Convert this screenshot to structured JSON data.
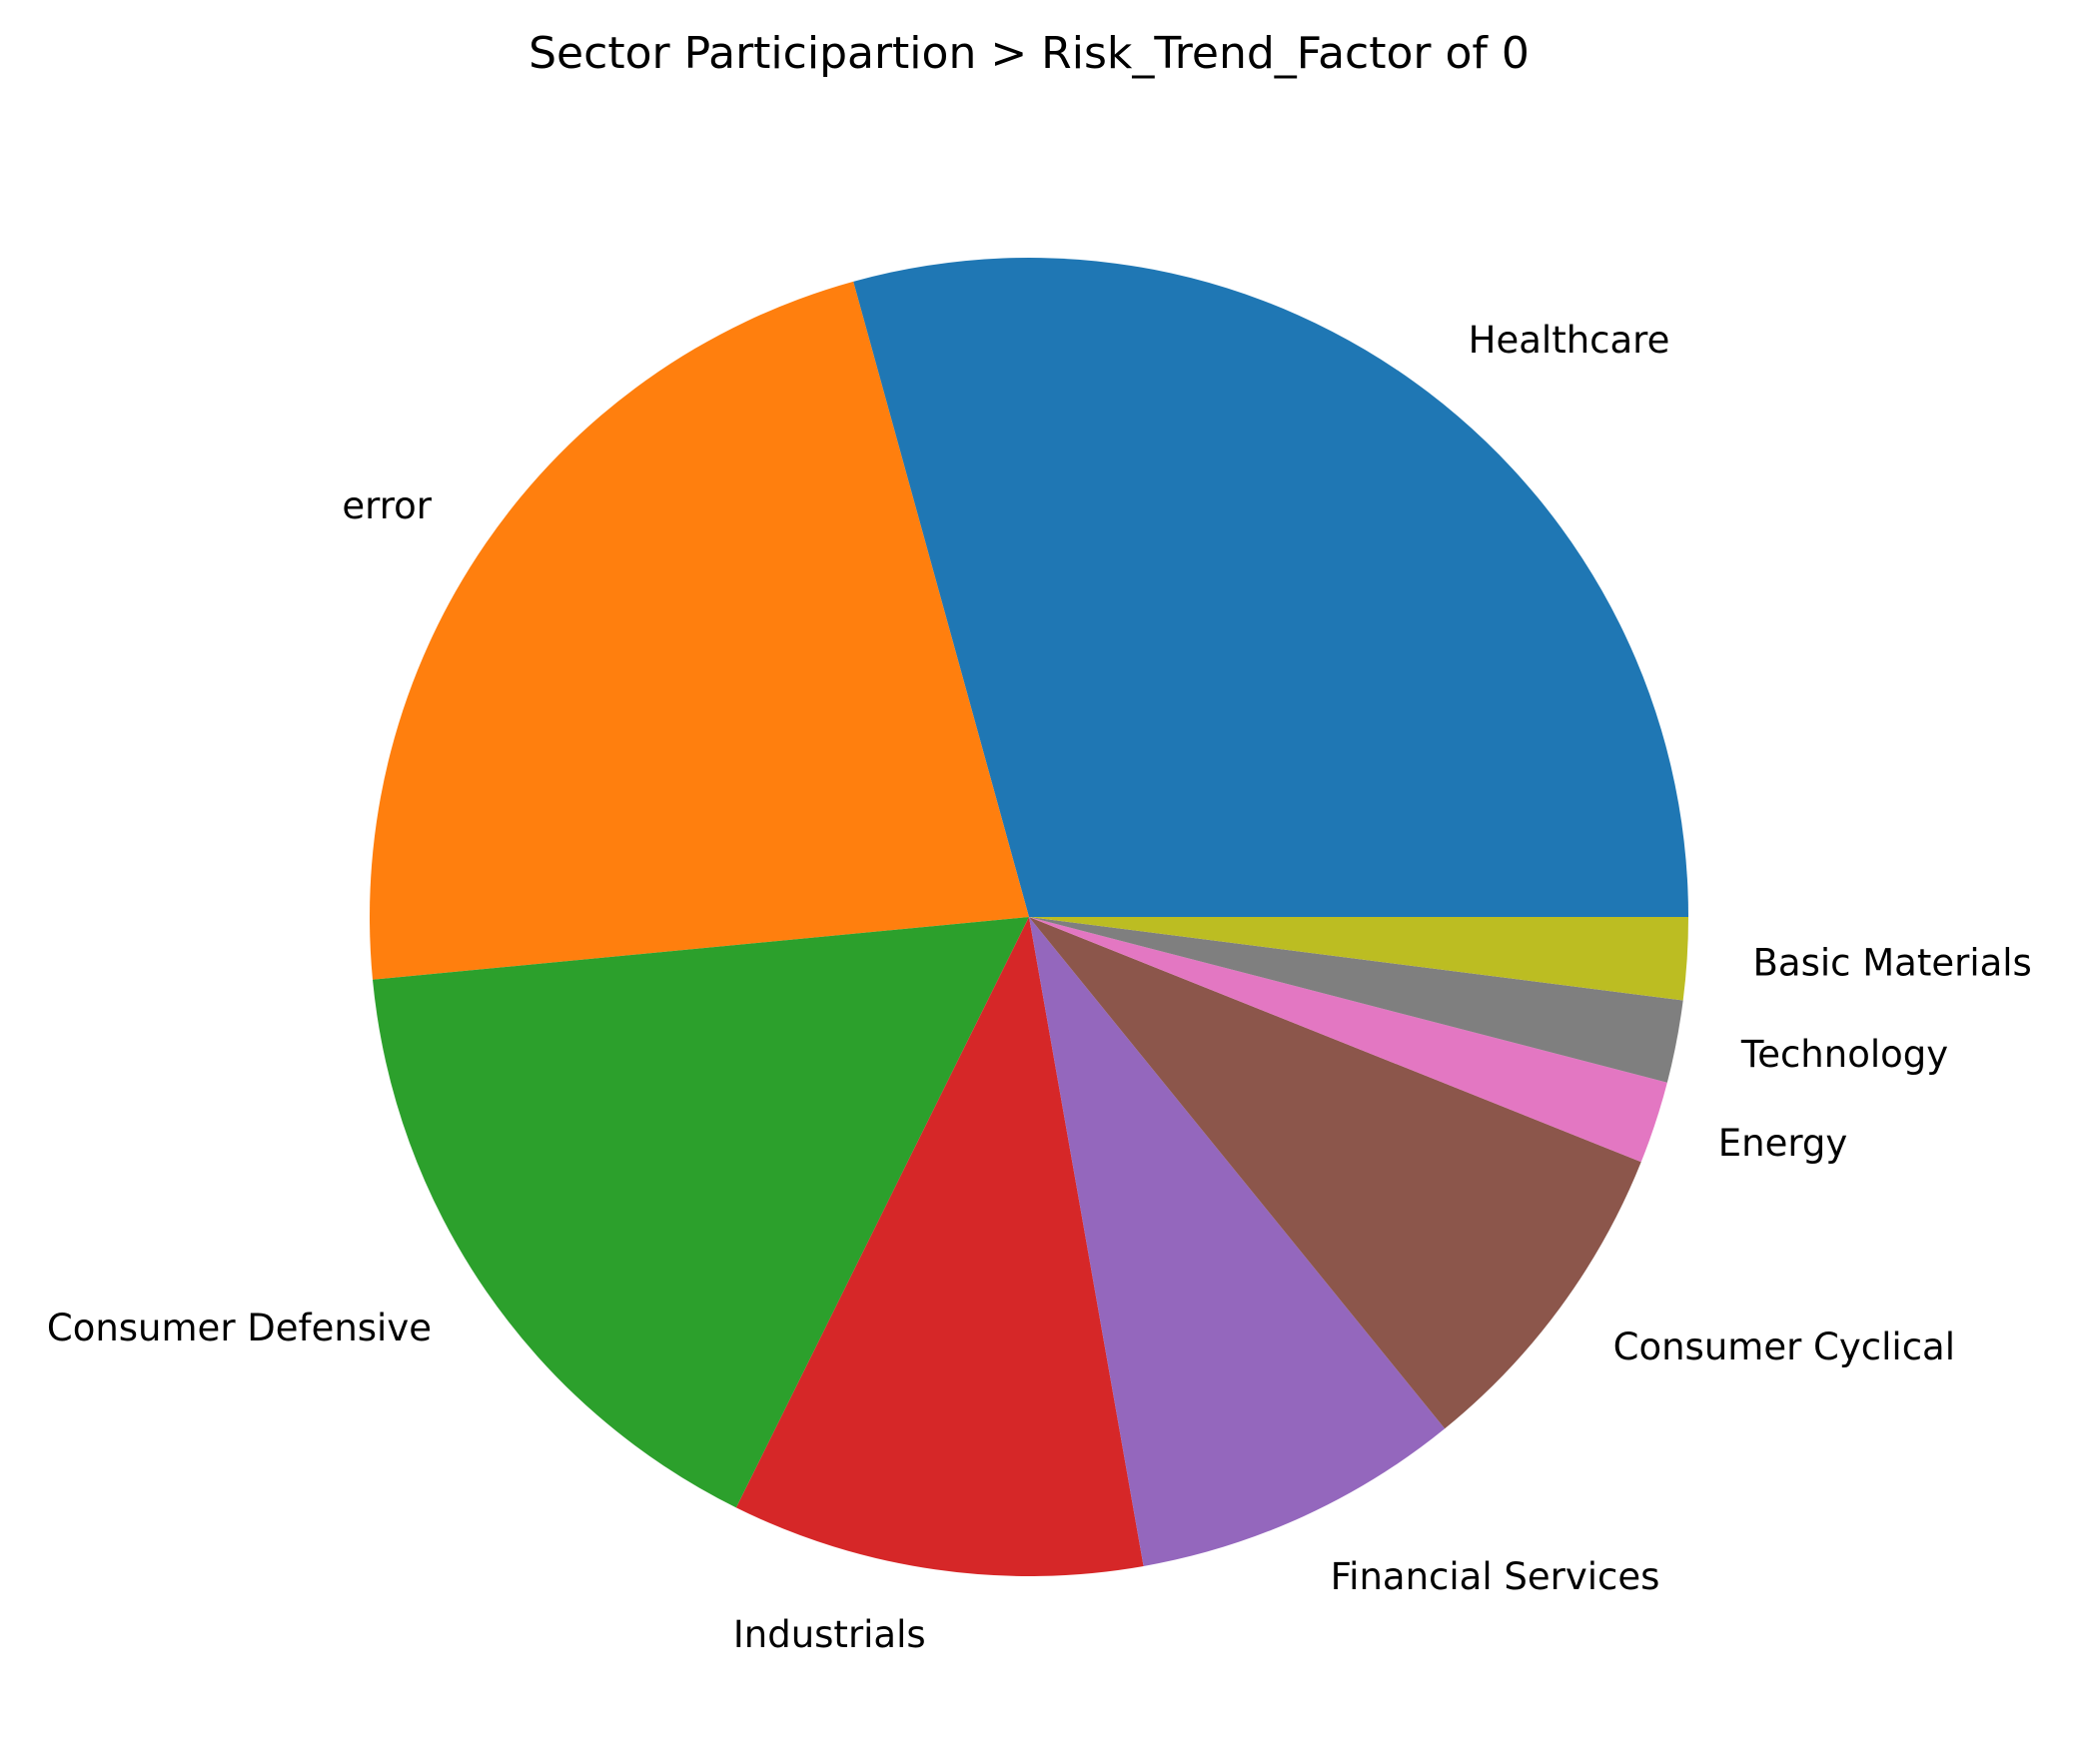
{
  "chart_data": {
    "type": "pie",
    "title": "Sector Participartion > Risk_Trend_Factor of 0",
    "start_angle_deg": 0,
    "direction": "counterclockwise",
    "slices": [
      {
        "label": "Healthcare",
        "value": 29.0,
        "color": "#1f77b4"
      },
      {
        "label": "error",
        "value": 22.0,
        "color": "#ff7f0e"
      },
      {
        "label": "Consumer Defensive",
        "value": 16.0,
        "color": "#2ca02c"
      },
      {
        "label": "Industrials",
        "value": 10.0,
        "color": "#d62728"
      },
      {
        "label": "Financial Services",
        "value": 8.0,
        "color": "#9467bd"
      },
      {
        "label": "Consumer Cyclical",
        "value": 8.0,
        "color": "#8c564b"
      },
      {
        "label": "Energy",
        "value": 2.0,
        "color": "#e377c2"
      },
      {
        "label": "Technology",
        "value": 2.0,
        "color": "#7f7f7f"
      },
      {
        "label": "Basic Materials",
        "value": 2.0,
        "color": "#bcbd22"
      }
    ]
  }
}
